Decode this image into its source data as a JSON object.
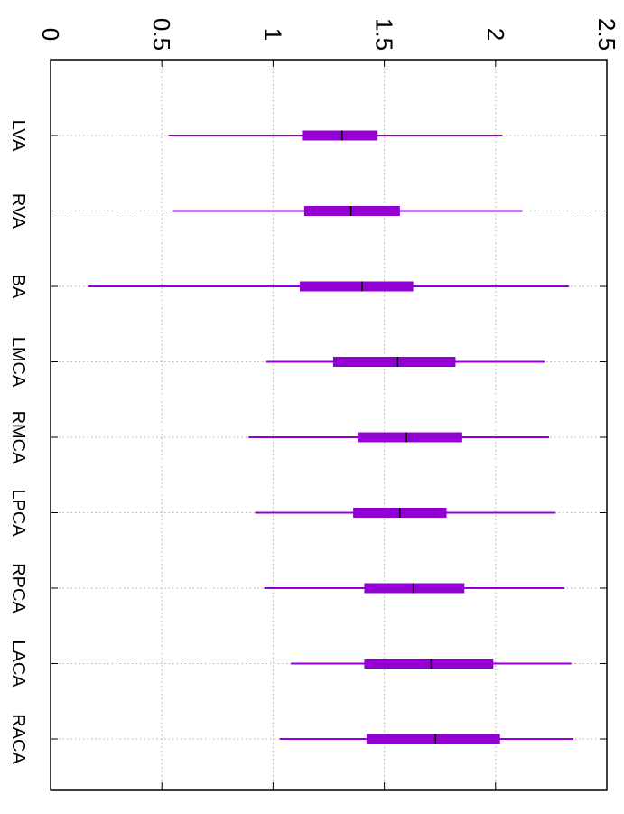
{
  "chart_data": {
    "type": "boxplot",
    "orientation": "rotated-90",
    "title": "",
    "xlabel": "",
    "ylabel": "",
    "ylim": [
      0,
      2.5
    ],
    "yticks": [
      "0",
      "0.5",
      "1",
      "1.5",
      "2",
      "2.5"
    ],
    "ytick_values": [
      0,
      0.5,
      1,
      1.5,
      2,
      2.5
    ],
    "grid": true,
    "color": "#9400D3",
    "categories": [
      "LVA",
      "RVA",
      "BA",
      "LMCA",
      "RMCA",
      "LPCA",
      "RPCA",
      "LACA",
      "RACA"
    ],
    "boxes": [
      {
        "label": "LVA",
        "whisker_low": 0.53,
        "q1": 1.13,
        "median": 1.31,
        "q3": 1.47,
        "whisker_high": 2.03
      },
      {
        "label": "RVA",
        "whisker_low": 0.55,
        "q1": 1.14,
        "median": 1.35,
        "q3": 1.57,
        "whisker_high": 2.12
      },
      {
        "label": "BA",
        "whisker_low": 0.17,
        "q1": 1.12,
        "median": 1.4,
        "q3": 1.63,
        "whisker_high": 2.33
      },
      {
        "label": "LMCA",
        "whisker_low": 0.97,
        "q1": 1.27,
        "median": 1.56,
        "q3": 1.82,
        "whisker_high": 2.22
      },
      {
        "label": "RMCA",
        "whisker_low": 0.89,
        "q1": 1.38,
        "median": 1.6,
        "q3": 1.85,
        "whisker_high": 2.24
      },
      {
        "label": "LPCA",
        "whisker_low": 0.92,
        "q1": 1.36,
        "median": 1.57,
        "q3": 1.78,
        "whisker_high": 2.27
      },
      {
        "label": "RPCA",
        "whisker_low": 0.96,
        "q1": 1.41,
        "median": 1.63,
        "q3": 1.86,
        "whisker_high": 2.31
      },
      {
        "label": "LACA",
        "whisker_low": 1.08,
        "q1": 1.41,
        "median": 1.71,
        "q3": 1.99,
        "whisker_high": 2.34
      },
      {
        "label": "RACA",
        "whisker_low": 1.03,
        "q1": 1.42,
        "median": 1.73,
        "q3": 2.02,
        "whisker_high": 2.35
      }
    ]
  }
}
